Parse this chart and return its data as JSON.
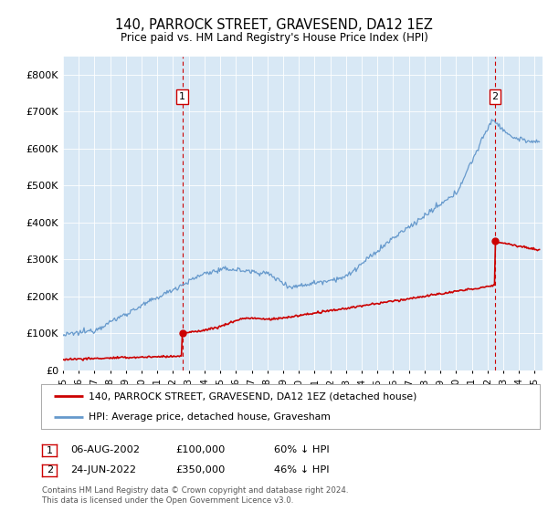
{
  "title": "140, PARROCK STREET, GRAVESEND, DA12 1EZ",
  "subtitle": "Price paid vs. HM Land Registry's House Price Index (HPI)",
  "ylim": [
    0,
    850000
  ],
  "yticks": [
    0,
    100000,
    200000,
    300000,
    400000,
    500000,
    600000,
    700000,
    800000
  ],
  "bg_color": "#d8e8f5",
  "hpi_color": "#6699cc",
  "price_color": "#cc0000",
  "vline_color": "#cc0000",
  "transaction1": {
    "date_num": 2002.59,
    "price": 100000,
    "label": "1",
    "date_str": "06-AUG-2002",
    "pct": "60% ↓ HPI"
  },
  "transaction2": {
    "date_num": 2022.48,
    "price": 350000,
    "label": "2",
    "date_str": "24-JUN-2022",
    "pct": "46% ↓ HPI"
  },
  "legend_line1": "140, PARROCK STREET, GRAVESEND, DA12 1EZ (detached house)",
  "legend_line2": "HPI: Average price, detached house, Gravesham",
  "footnote": "Contains HM Land Registry data © Crown copyright and database right 2024.\nThis data is licensed under the Open Government Licence v3.0.",
  "xmin": 1995,
  "xmax": 2025.5
}
